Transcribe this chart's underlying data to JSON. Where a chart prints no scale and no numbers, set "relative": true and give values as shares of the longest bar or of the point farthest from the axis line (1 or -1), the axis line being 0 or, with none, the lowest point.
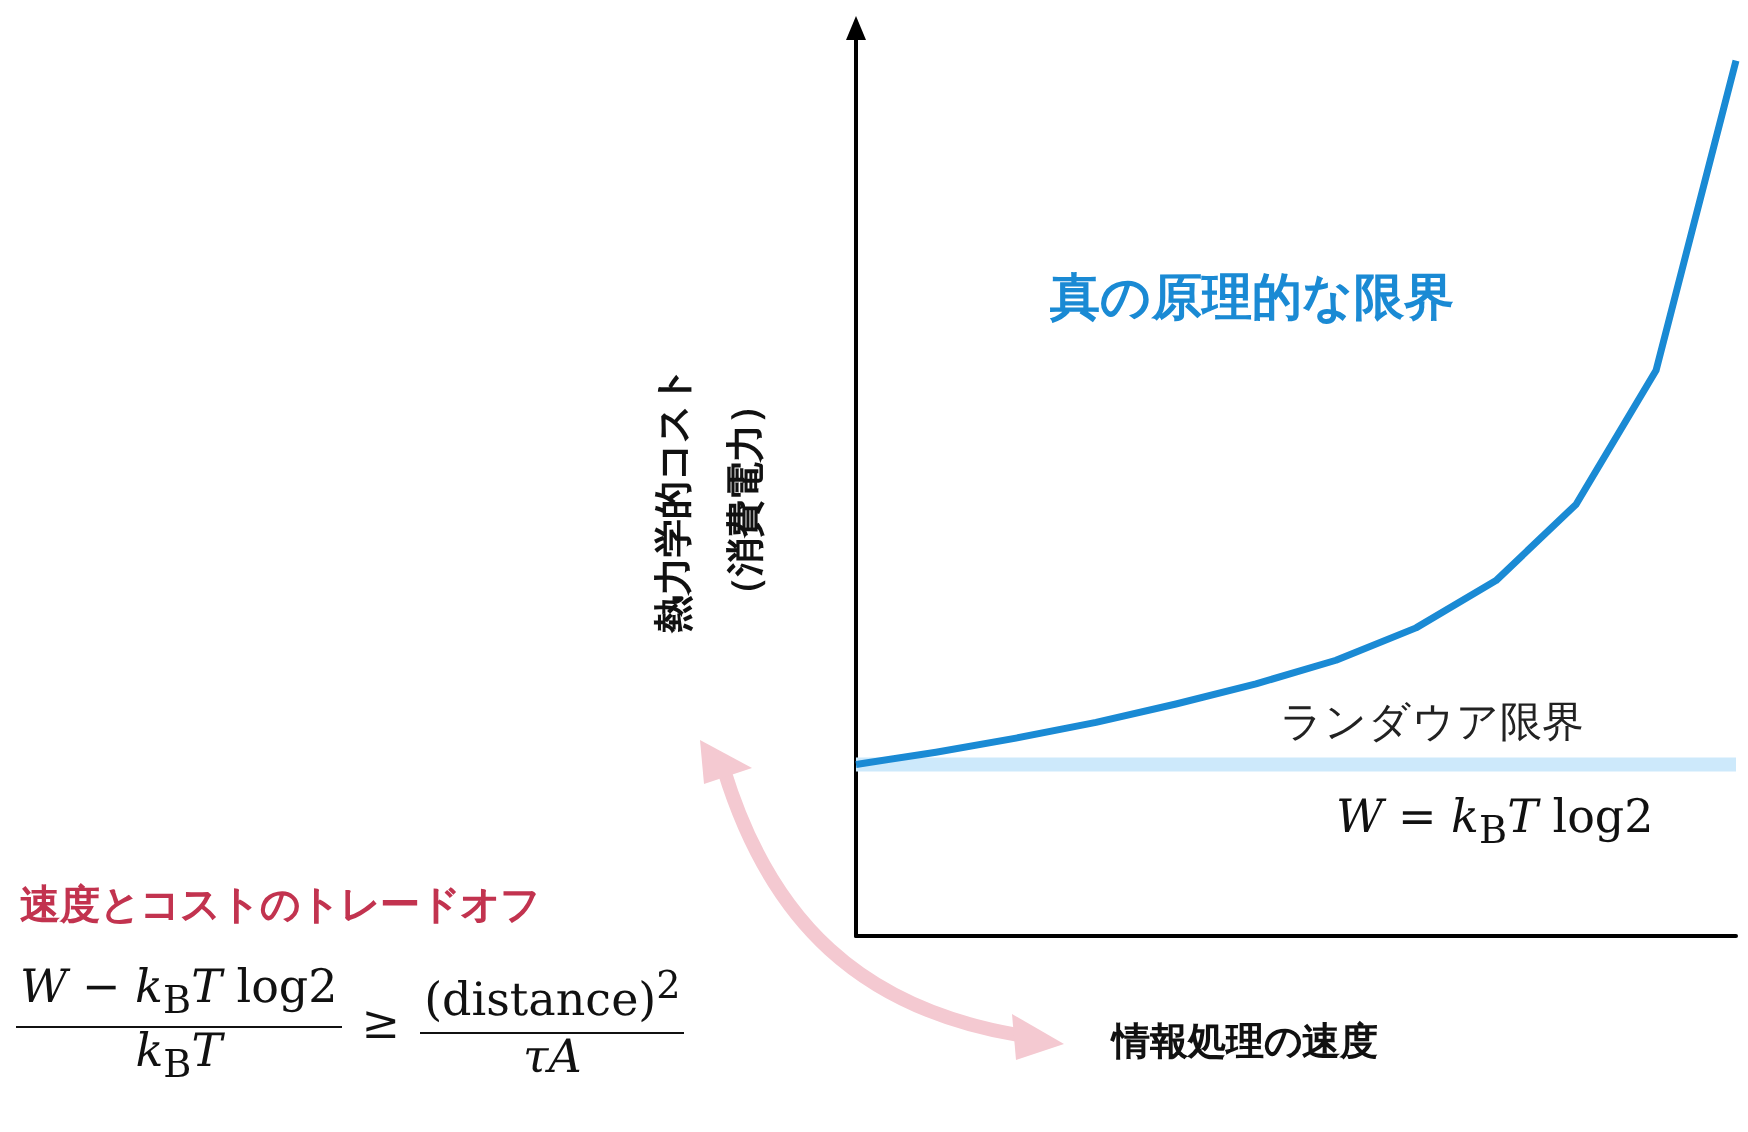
{
  "chart_data": {
    "type": "line",
    "relative": true,
    "xlabel": "情報処理の速度",
    "ylabel": "熱力学的コスト（消費電力）",
    "categories": [
      null,
      null,
      null,
      null,
      null,
      null,
      null,
      null,
      null,
      null,
      null,
      null
    ],
    "series": [
      {
        "name": "ランダウア限界",
        "color": "#cde9fb",
        "values": [
          0.196,
          0.196,
          0.196,
          0.196,
          0.196,
          0.196,
          0.196,
          0.196,
          0.196,
          0.196,
          0.196,
          0.196
        ]
      },
      {
        "name": "真の原理的な限界",
        "color": "#1a8ad4",
        "values": [
          0.196,
          0.21,
          0.226,
          0.244,
          0.265,
          0.288,
          0.315,
          0.352,
          0.406,
          0.493,
          0.646,
          1.0
        ]
      }
    ],
    "annotations": [
      "W = k$_{B}$T log2",
      "速度とコストのトレードオフ",
      "W − k$_{B}$T log2",
      "k$_{B}$T",
      "≥",
      "(distance)$^{2}$",
      "τA"
    ],
    "grid": false
  }
}
